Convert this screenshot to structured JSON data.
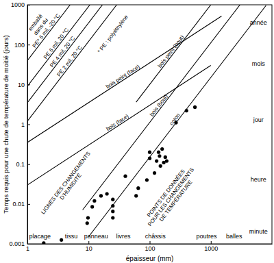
{
  "chart_data": {
    "type": "line",
    "x_label": "épaisseur (mm)",
    "y_label": "Temps requis pour une chute de température de moitié (jours)",
    "log": true,
    "grid": false,
    "xlim": [
      1,
      10000
    ],
    "ylim": [
      0.001,
      1000
    ],
    "xticks": [
      1,
      10,
      100,
      1000
    ],
    "yticks": [
      0.001,
      0.01,
      0.1,
      1,
      10,
      100,
      1000
    ],
    "series": [
      {
        "name": "PE* 6 mil, -20 °C",
        "type": "line",
        "color": "#000000",
        "x": [
          1,
          5
        ],
        "values": [
          40,
          1000
        ]
      },
      {
        "name": "PE 6 mil, 20 °C",
        "type": "line",
        "color": "#000000",
        "x": [
          1,
          10.54
        ],
        "values": [
          9,
          1000
        ]
      },
      {
        "name": "PE 4 mil, 20 °C",
        "type": "line",
        "color": "#000000",
        "x": [
          1,
          16.9
        ],
        "values": [
          3.5,
          1000
        ]
      },
      {
        "name": "PE 2 mil, 20 °C",
        "type": "line",
        "color": "#000000",
        "x": [
          1,
          28.9
        ],
        "values": [
          1.2,
          1000
        ]
      },
      {
        "name": "bois peint (face)",
        "type": "line",
        "color": "#000000",
        "x": [
          1,
          1500
        ],
        "values": [
          0.35,
          520
        ]
      },
      {
        "name": "bois peint (bout)",
        "type": "line",
        "color": "#000000",
        "x": [
          60,
          1000
        ],
        "values": [
          3.6,
          1000
        ]
      },
      {
        "name": "bois (face)",
        "type": "line",
        "color": "#000000",
        "x": [
          1,
          1000
        ],
        "values": [
          0.03,
          30
        ]
      },
      {
        "name": "bois (bout)",
        "type": "line",
        "color": "#000000",
        "x": [
          8,
          3000
        ],
        "values": [
          0.0071,
          1000
        ]
      },
      {
        "name": "coton",
        "type": "line",
        "color": "#000000",
        "x": [
          10,
          8000
        ],
        "values": [
          0.0015,
          960
        ]
      },
      {
        "type": "scatter",
        "color": "#000000",
        "marker": "circle",
        "x": [
          1.85,
          3.6,
          9.5,
          9.8,
          11.5,
          12.5,
          16,
          20,
          25,
          25,
          25,
          25,
          40,
          60,
          65,
          90,
          100,
          100,
          120,
          130,
          140,
          145,
          150,
          160,
          170,
          180,
          190,
          270,
          400,
          550
        ],
        "values": [
          0.00105,
          0.00125,
          0.0033,
          0.0045,
          0.0085,
          0.012,
          0.016,
          0.018,
          0.0045,
          0.0065,
          0.009,
          0.013,
          0.05,
          0.016,
          0.025,
          0.04,
          0.14,
          0.2,
          0.06,
          0.12,
          0.2,
          0.16,
          0.09,
          0.24,
          0.11,
          0.15,
          0.12,
          1.1,
          2.2,
          2.7
        ]
      }
    ],
    "annotations": [
      {
        "text": "placage",
        "x": 1.6,
        "y": 0.0015
      },
      {
        "text": "tissu",
        "x": 5.2,
        "y": 0.0015
      },
      {
        "text": "panneau",
        "x": 13.3,
        "y": 0.0015
      },
      {
        "text": "livres",
        "x": 37,
        "y": 0.0015
      },
      {
        "text": "châssis",
        "x": 124,
        "y": 0.0015
      },
      {
        "text": "poutres",
        "x": 850,
        "y": 0.0015
      },
      {
        "text": "balles",
        "x": 2400,
        "y": 0.0015
      },
      {
        "text": "année",
        "x": 6000,
        "y": 350
      },
      {
        "text": "mois",
        "x": 6000,
        "y": 33
      },
      {
        "text": "jour",
        "x": 6000,
        "y": 1.27
      },
      {
        "text": "heure",
        "x": 6000,
        "y": 0.041
      },
      {
        "text": "minute",
        "x": 6000,
        "y": 0.002
      }
    ],
    "line_annotations": [
      {
        "text": "emballé",
        "x": 1.37,
        "y": 356
      },
      {
        "text": "dans du",
        "x": 1.68,
        "y": 280
      },
      {
        "text": "* PE : polyéthylène",
        "x": 25.2,
        "y": 182
      },
      {
        "text": [
          "LIGNES DES CHANGEMENTS",
          "D'HUMIDITÉ"
        ],
        "x": 4.7,
        "y": 0.0301
      },
      {
        "text": [
          "POINTS DE DONNÉES",
          "POUR LES CHANGEMENTS",
          "DE TEMPÉRATURE"
        ],
        "x": 225,
        "y": 0.0148
      }
    ]
  }
}
